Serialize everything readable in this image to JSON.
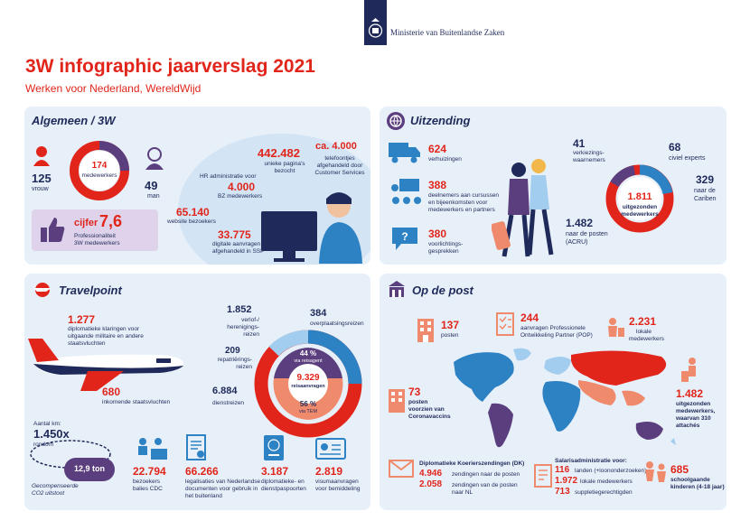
{
  "header": {
    "ministry": "Ministerie van Buitenlandse Zaken",
    "title": "3W infographic jaarverslag 2021",
    "subtitle": "Werken voor Nederland, WereldWijd"
  },
  "algemeen": {
    "title": "Algemeen / 3W",
    "vrouw_value": "125",
    "vrouw_label": "vrouw",
    "medewerkers_value": "174",
    "medewerkers_label": "medewerkers",
    "man_value": "49",
    "man_label": "man",
    "cijfer_prefix": "cijfer",
    "cijfer_value": "7,6",
    "cijfer_label1": "Professionaliteit",
    "cijfer_label2": "3W medewerkers",
    "paginas_value": "442.482",
    "paginas_label1": "unieke pagina's",
    "paginas_label2": "bezocht",
    "telefoon_value": "ca. 4.000",
    "telefoon_label1": "telefoontjes",
    "telefoon_label2": "afgehandeld door",
    "telefoon_label3": "Customer Services",
    "hr_label": "HR administratie voor",
    "hr_value": "4.000",
    "hr_label2": "BZ medewerkers",
    "website_value": "65.140",
    "website_label": "website bezoekers",
    "digitaal_value": "33.775",
    "digitaal_label1": "digitale aanvragen",
    "digitaal_label2": "afgehandeld in SSP"
  },
  "uitzending": {
    "title": "Uitzending",
    "verhuizingen_value": "624",
    "verhuizingen_label": "verhuizingen",
    "deelnemers_value": "388",
    "deelnemers_label1": "deelnemers aan cursussen",
    "deelnemers_label2": "en bijeenkomsten voor",
    "deelnemers_label3": "medewerkers en partners",
    "voorlichting_value": "380",
    "voorlichting_label1": "voorlichtings-",
    "voorlichting_label2": "gesprekken",
    "verkiezing_value": "41",
    "verkiezing_label1": "verkiezings-",
    "verkiezing_label2": "waarnemers",
    "civiel_value": "68",
    "civiel_label": "civiel experts",
    "cariben_value": "329",
    "cariben_label1": "naar de",
    "cariben_label2": "Cariben",
    "uitgezonden_value": "1.811",
    "uitgezonden_label1": "uitgezonden",
    "uitgezonden_label2": "medewerkers",
    "posten_value": "1.482",
    "posten_label1": "naar de posten",
    "posten_label2": "(ACRU)"
  },
  "travelpoint": {
    "title": "Travelpoint",
    "klaringen_value": "1.277",
    "klaringen_label1": "diplomatieke klaringen voor",
    "klaringen_label2": "uitgaande militaire en andere",
    "klaringen_label3": "staatsvluchten",
    "inkomend_value": "680",
    "inkomend_label": "inkomende staatsvluchten",
    "verlof_value": "1.852",
    "verlof_label1": "verlof-/",
    "verlof_label2": "herenigings-",
    "verlof_label3": "reizen",
    "overplaatsing_value": "384",
    "overplaatsing_label": "overplaatsingsreizen",
    "repatriering_value": "209",
    "repatriering_label1": "repatriërings-",
    "repatriering_label2": "reizen",
    "dienstreizen_value": "6.884",
    "dienstreizen_label": "dienstreizen",
    "donut_top_pct": "44 %",
    "donut_top_label": "via reisagent",
    "donut_center_value": "9.329",
    "donut_center_label": "reisaanvragen",
    "donut_bottom_pct": "56 %",
    "donut_bottom_label": "via TEM",
    "km_label": "Aantal km:",
    "km_value": "1.450x",
    "km_label2": "rondom",
    "co2_value": "12,9 ton",
    "co2_label1": "Gecompenseerde",
    "co2_label2": "CO2 uitstoot",
    "balies_value": "22.794",
    "balies_label1": "bezoekers",
    "balies_label2": "balies CDC",
    "legalisaties_value": "66.266",
    "legalisaties_label1": "legalisaties van Nederlandse",
    "legalisaties_label2": "documenten voor gebruik in",
    "legalisaties_label3": "het buitenland",
    "paspoorten_value": "3.187",
    "paspoorten_label1": "diplomatieke- en",
    "paspoorten_label2": "dienstpaspoorten",
    "visum_value": "2.819",
    "visum_label1": "visumaanvragen",
    "visum_label2": "voor bemiddeling"
  },
  "opdepost": {
    "title": "Op de post",
    "posten_value": "137",
    "posten_label": "posten",
    "pop_value": "244",
    "pop_label1": "aanvragen Professionele",
    "pop_label2": "Ontwikkeling Partner (POP)",
    "lokaal_value": "2.231",
    "lokaal_label1": "lokale",
    "lokaal_label2": "medewerkers",
    "corona_value": "73",
    "corona_label1": "posten",
    "corona_label2": "voorzien van",
    "corona_label3": "Coronavaccins",
    "uitgezonden_value": "1.482",
    "uitgezonden_label1": "uitgezonden",
    "uitgezonden_label2": "medewerkers,",
    "uitgezonden_label3": "waarvan 310",
    "uitgezonden_label4": "attachés",
    "koerier_title": "Diplomatieke Koerierszendingen (DK)",
    "koerier_value1": "4.946",
    "koerier_label1": "zendingen naar de posten",
    "koerier_value2": "2.058",
    "koerier_label2": "zendingen van de posten",
    "koerier_label3": "naar NL",
    "salaris_title": "Salarisadministratie voor:",
    "salaris_value1": "116",
    "salaris_label1": "landen (+loononderzoeken)",
    "salaris_value2": "1.972",
    "salaris_label2": "lokale medewerkers",
    "salaris_value3": "713",
    "salaris_label3": "suppletiegerechtigden",
    "school_value": "685",
    "school_label1": "schoolgaande",
    "school_label2": "kinderen (4-18 jaar)"
  },
  "colors": {
    "red": "#e1251b",
    "navy": "#1f2a5a",
    "purple": "#5b3e7e",
    "blue": "#2d82c4",
    "panel": "#e7f0f9",
    "salmon": "#f08a6c"
  }
}
